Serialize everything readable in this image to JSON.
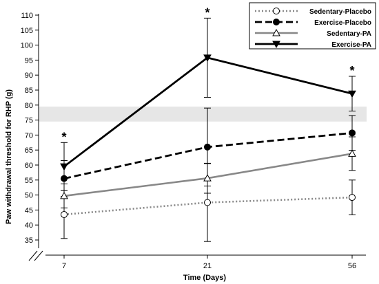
{
  "chart_data": {
    "type": "line",
    "title": "",
    "xlabel": "Time (Days)",
    "ylabel": "Paw withdrawal threshold for RHP (g)",
    "x_categories": [
      "7",
      "21",
      "56"
    ],
    "ylim": [
      35,
      110
    ],
    "y_ticks": [
      "35",
      "40",
      "45",
      "50",
      "55",
      "60",
      "65",
      "70",
      "75",
      "80",
      "85",
      "90",
      "95",
      "100",
      "105",
      "110"
    ],
    "grid": false,
    "axis_break": true,
    "reference_band": {
      "from": 74.5,
      "to": 79.5,
      "color": "#e6e6e6"
    },
    "legend": {
      "position": "top-right"
    },
    "significance_marker": "*",
    "significance_at": [
      "7",
      "21",
      "56"
    ],
    "series": [
      {
        "name": "Sedentary-Placebo",
        "style": "dotted",
        "color": "#888888",
        "marker": "circle-open",
        "values": [
          43.5,
          47.5,
          49.2
        ],
        "errors": [
          8.0,
          13.0,
          5.8
        ]
      },
      {
        "name": "Exercise-Placebo",
        "style": "dashed",
        "color": "#000000",
        "marker": "circle-filled",
        "values": [
          55.5,
          66.0,
          70.7
        ],
        "errors": [
          6.0,
          13.0,
          5.8
        ]
      },
      {
        "name": "Sedentary-PA",
        "style": "solid",
        "color": "#888888",
        "marker": "triangle-up-open",
        "values": [
          49.7,
          55.6,
          63.8
        ],
        "errors": [
          4.0,
          5.0,
          5.6
        ]
      },
      {
        "name": "Exercise-PA",
        "style": "solid",
        "color": "#000000",
        "marker": "triangle-down-filled",
        "values": [
          59.5,
          95.8,
          83.8
        ],
        "errors": [
          8.0,
          13.2,
          5.8
        ]
      }
    ]
  }
}
